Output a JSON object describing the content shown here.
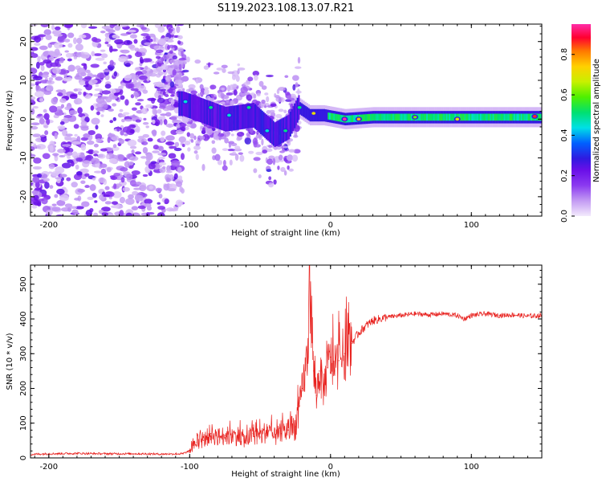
{
  "figure_title": "S119.2023.108.13.07.R21",
  "colors": {
    "snr_line": "#e8221f",
    "axis": "#000000",
    "colormap": [
      "#f3eafc",
      "#c39bf3",
      "#8b3af0",
      "#6a0fe8",
      "#2f1ae0",
      "#0060ff",
      "#00e0e6",
      "#00e070",
      "#4ef000",
      "#c8f000",
      "#ffd000",
      "#ff7800",
      "#ff0030",
      "#ff2ca8"
    ]
  },
  "chart_data": [
    {
      "type": "heatmap",
      "title": "",
      "xlabel": "Height of straight line (km)",
      "ylabel": "Frequency (Hz)",
      "xlim": [
        -213,
        150
      ],
      "ylim": [
        -25,
        24.5
      ],
      "x_ticks": [
        -200,
        -100,
        0,
        100
      ],
      "y_ticks": [
        -20,
        -10,
        0,
        10,
        20
      ],
      "colorbar": {
        "label": "Normalized spectral amplitude",
        "range": [
          0,
          0.95
        ],
        "ticks": [
          0.0,
          0.2,
          0.4,
          0.6,
          0.8
        ]
      },
      "ridge": [
        {
          "x": -105,
          "y": 4
        },
        {
          "x": -90,
          "y": 2
        },
        {
          "x": -75,
          "y": 0
        },
        {
          "x": -55,
          "y": 1
        },
        {
          "x": -40,
          "y": -4
        },
        {
          "x": -30,
          "y": -2
        },
        {
          "x": -23,
          "y": 3
        },
        {
          "x": -15,
          "y": 1
        },
        {
          "x": -5,
          "y": 1
        },
        {
          "x": 10,
          "y": 0
        },
        {
          "x": 30,
          "y": 0.5
        },
        {
          "x": 60,
          "y": 0.5
        },
        {
          "x": 100,
          "y": 0.5
        },
        {
          "x": 130,
          "y": 0.5
        },
        {
          "x": 150,
          "y": 0.5
        }
      ],
      "hot_spots": [
        {
          "x": -103,
          "y": 4.5,
          "v": 0.45
        },
        {
          "x": -85,
          "y": 3,
          "v": 0.5
        },
        {
          "x": -72,
          "y": 1,
          "v": 0.45
        },
        {
          "x": -58,
          "y": 3,
          "v": 0.5
        },
        {
          "x": -45,
          "y": -3,
          "v": 0.45
        },
        {
          "x": -32,
          "y": -3,
          "v": 0.5
        },
        {
          "x": -22,
          "y": 3,
          "v": 0.5
        },
        {
          "x": -12,
          "y": 1.5,
          "v": 0.7
        },
        {
          "x": 10,
          "y": 0,
          "v": 0.95
        },
        {
          "x": 20,
          "y": 0,
          "v": 0.75
        },
        {
          "x": 60,
          "y": 0.5,
          "v": 0.6
        },
        {
          "x": 90,
          "y": 0,
          "v": 0.7
        },
        {
          "x": 145,
          "y": 0.7,
          "v": 0.85
        }
      ]
    },
    {
      "type": "line",
      "title": "",
      "xlabel": "Height of straight line (km)",
      "ylabel": "SNR (10 * v/v)",
      "xlim": [
        -213,
        150
      ],
      "ylim": [
        0,
        555
      ],
      "x_ticks": [
        -200,
        -100,
        0,
        100
      ],
      "y_ticks": [
        0,
        100,
        200,
        300,
        400,
        500
      ],
      "series": [
        {
          "x": [
            -213,
            -200,
            -180,
            -160,
            -140,
            -120,
            -105,
            -100,
            -95,
            -90,
            -85,
            -80,
            -75,
            -70,
            -65,
            -60,
            -55,
            -50,
            -45,
            -40,
            -35,
            -30,
            -25,
            -22,
            -20,
            -18,
            -16,
            -15,
            -12,
            -10,
            -8,
            -5,
            -2,
            0,
            3,
            6,
            10,
            15,
            20,
            25,
            30,
            40,
            50,
            60,
            70,
            80,
            90,
            95,
            100,
            110,
            120,
            130,
            140,
            150
          ],
          "values": [
            10,
            12,
            13,
            12,
            12,
            11,
            12,
            20,
            45,
            50,
            70,
            60,
            65,
            60,
            65,
            50,
            70,
            60,
            80,
            60,
            70,
            80,
            90,
            150,
            200,
            250,
            300,
            555,
            250,
            180,
            250,
            200,
            260,
            290,
            250,
            280,
            300,
            330,
            360,
            380,
            395,
            405,
            410,
            415,
            412,
            415,
            410,
            400,
            410,
            415,
            410,
            412,
            408,
            410
          ]
        }
      ]
    }
  ]
}
